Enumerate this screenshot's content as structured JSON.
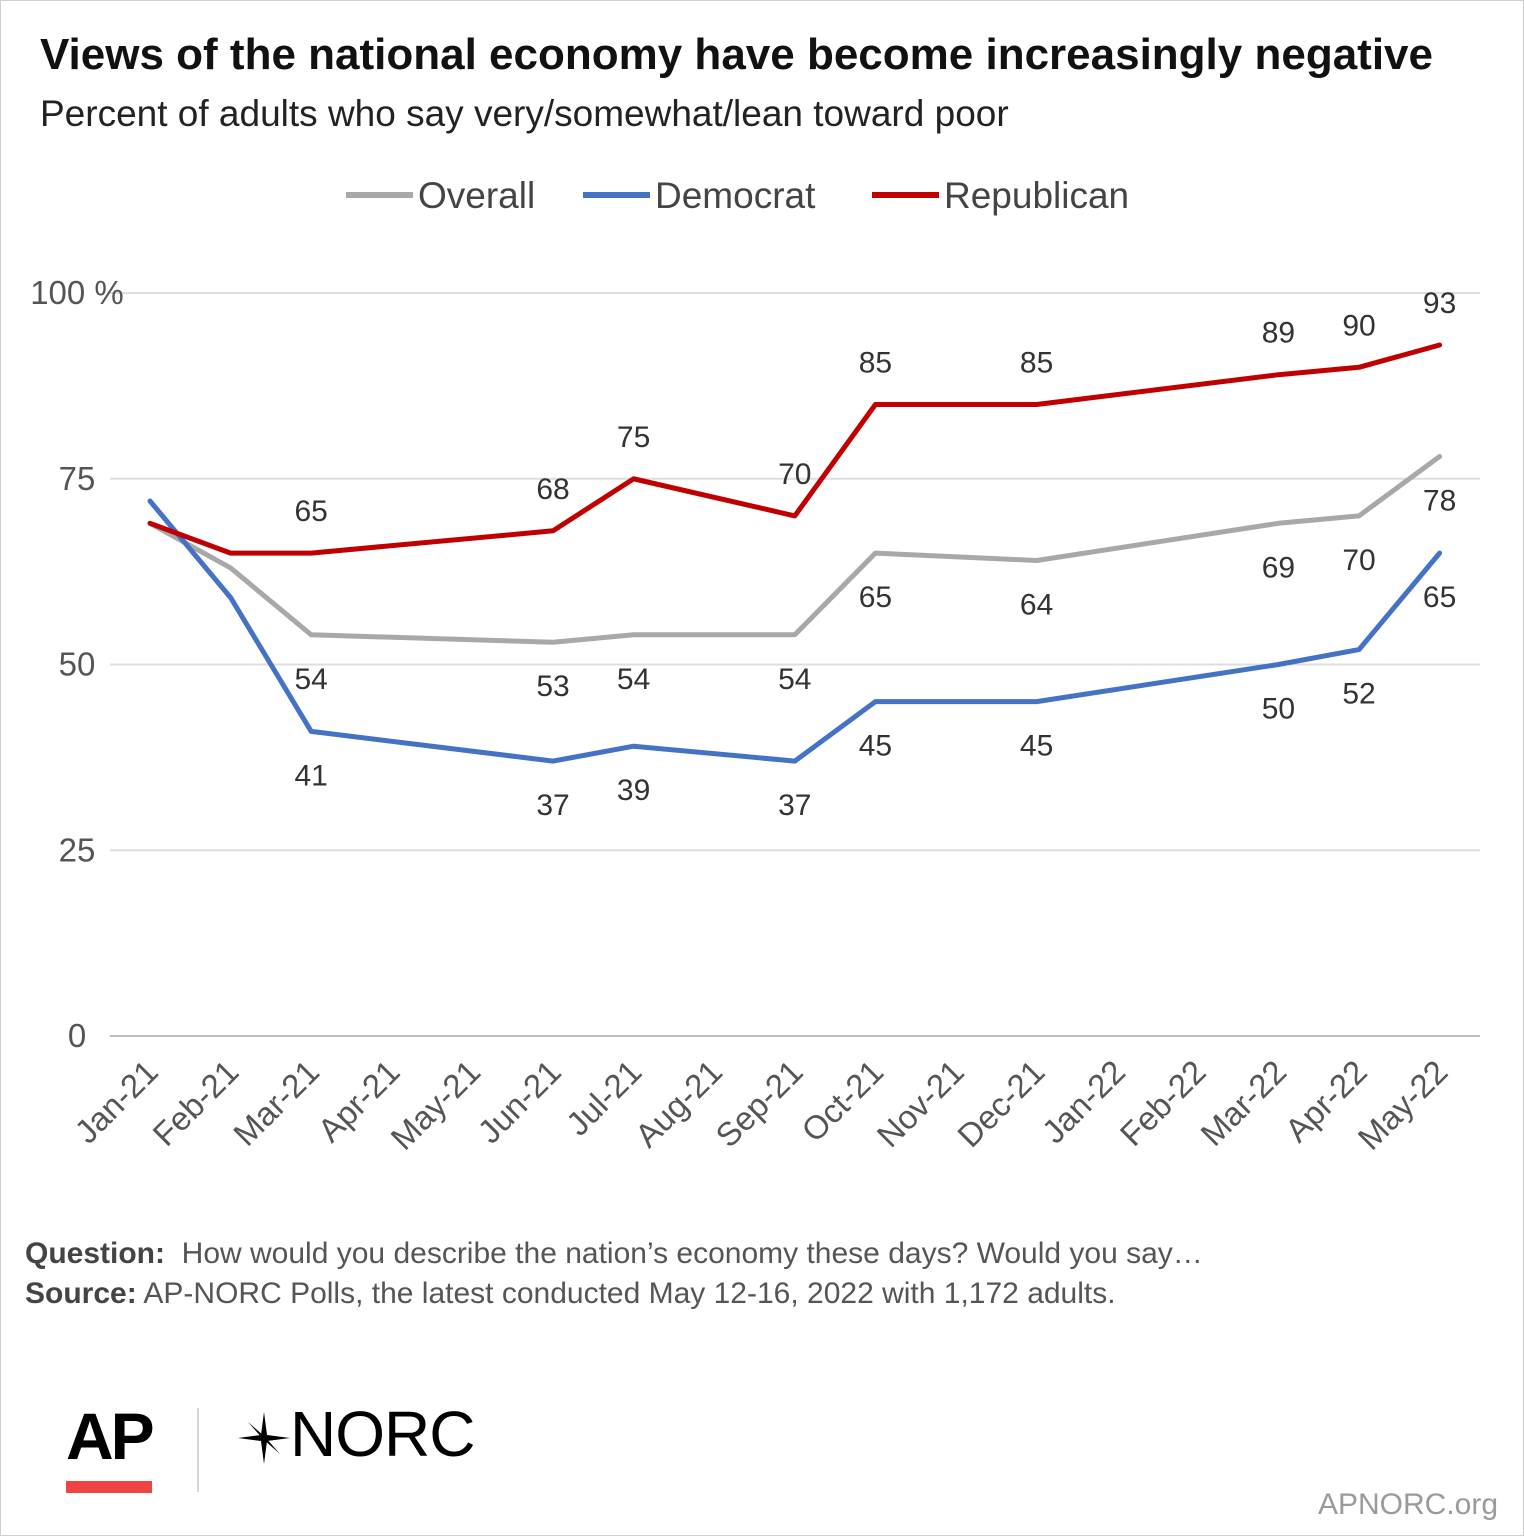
{
  "header": {
    "title": "Views of the national economy have become increasingly negative",
    "subtitle": "Percent of adults who say very/somewhat/lean toward poor"
  },
  "chart_data": {
    "type": "line",
    "title": "Views of the national economy have become increasingly negative",
    "subtitle": "Percent of adults who say very/somewhat/lean toward poor",
    "categories": [
      "Jan-21",
      "Feb-21",
      "Mar-21",
      "Apr-21",
      "May-21",
      "Jun-21",
      "Jul-21",
      "Aug-21",
      "Sep-21",
      "Oct-21",
      "Nov-21",
      "Dec-21",
      "Jan-22",
      "Feb-22",
      "Mar-22",
      "Apr-22",
      "May-22"
    ],
    "ylim": [
      0,
      100
    ],
    "yticks": [
      0,
      25,
      50,
      75,
      100
    ],
    "ytick_labels": [
      "0",
      "25",
      "50",
      "75",
      "100 %"
    ],
    "grid": true,
    "legend_position": "top-center",
    "series": [
      {
        "name": "Overall",
        "color": "#a8a8a8",
        "label_position": "below",
        "values": [
          {
            "x": "Jan-21",
            "y": 69
          },
          {
            "x": "Feb-21",
            "y": 63
          },
          {
            "x": "Mar-21",
            "y": 54
          },
          {
            "x": "Jun-21",
            "y": 53
          },
          {
            "x": "Jul-21",
            "y": 54
          },
          {
            "x": "Sep-21",
            "y": 54
          },
          {
            "x": "Oct-21",
            "y": 65
          },
          {
            "x": "Dec-21",
            "y": 64
          },
          {
            "x": "Mar-22",
            "y": 69
          },
          {
            "x": "Apr-22",
            "y": 70
          },
          {
            "x": "May-22",
            "y": 78
          }
        ],
        "labeled_points": [
          "Mar-21",
          "Jun-21",
          "Jul-21",
          "Sep-21",
          "Oct-21",
          "Dec-21",
          "Mar-22",
          "Apr-22",
          "May-22"
        ]
      },
      {
        "name": "Democrat",
        "color": "#4472c4",
        "label_position": "below",
        "values": [
          {
            "x": "Jan-21",
            "y": 72
          },
          {
            "x": "Feb-21",
            "y": 59
          },
          {
            "x": "Mar-21",
            "y": 41
          },
          {
            "x": "Jun-21",
            "y": 37
          },
          {
            "x": "Jul-21",
            "y": 39
          },
          {
            "x": "Sep-21",
            "y": 37
          },
          {
            "x": "Oct-21",
            "y": 45
          },
          {
            "x": "Dec-21",
            "y": 45
          },
          {
            "x": "Mar-22",
            "y": 50
          },
          {
            "x": "Apr-22",
            "y": 52
          },
          {
            "x": "May-22",
            "y": 65
          }
        ],
        "labeled_points": [
          "Mar-21",
          "Jun-21",
          "Jul-21",
          "Sep-21",
          "Oct-21",
          "Dec-21",
          "Mar-22",
          "Apr-22",
          "May-22"
        ]
      },
      {
        "name": "Republican",
        "color": "#c00000",
        "label_position": "above",
        "values": [
          {
            "x": "Jan-21",
            "y": 69
          },
          {
            "x": "Feb-21",
            "y": 65
          },
          {
            "x": "Mar-21",
            "y": 65
          },
          {
            "x": "Jun-21",
            "y": 68
          },
          {
            "x": "Jul-21",
            "y": 75
          },
          {
            "x": "Sep-21",
            "y": 70
          },
          {
            "x": "Oct-21",
            "y": 85
          },
          {
            "x": "Dec-21",
            "y": 85
          },
          {
            "x": "Mar-22",
            "y": 89
          },
          {
            "x": "Apr-22",
            "y": 90
          },
          {
            "x": "May-22",
            "y": 93
          }
        ],
        "labeled_points": [
          "Mar-21",
          "Jun-21",
          "Jul-21",
          "Sep-21",
          "Oct-21",
          "Dec-21",
          "Mar-22",
          "Apr-22",
          "May-22"
        ]
      }
    ]
  },
  "footer": {
    "question_label": "Question:",
    "question_text": "How would you describe the nation’s economy these days? Would you say…",
    "source_label": "Source:",
    "source_text": "AP-NORC Polls, the latest conducted May 12-16, 2022 with 1,172 adults.",
    "logo_ap": "AP",
    "logo_norc": "NORC",
    "site": "APNORC.org"
  }
}
